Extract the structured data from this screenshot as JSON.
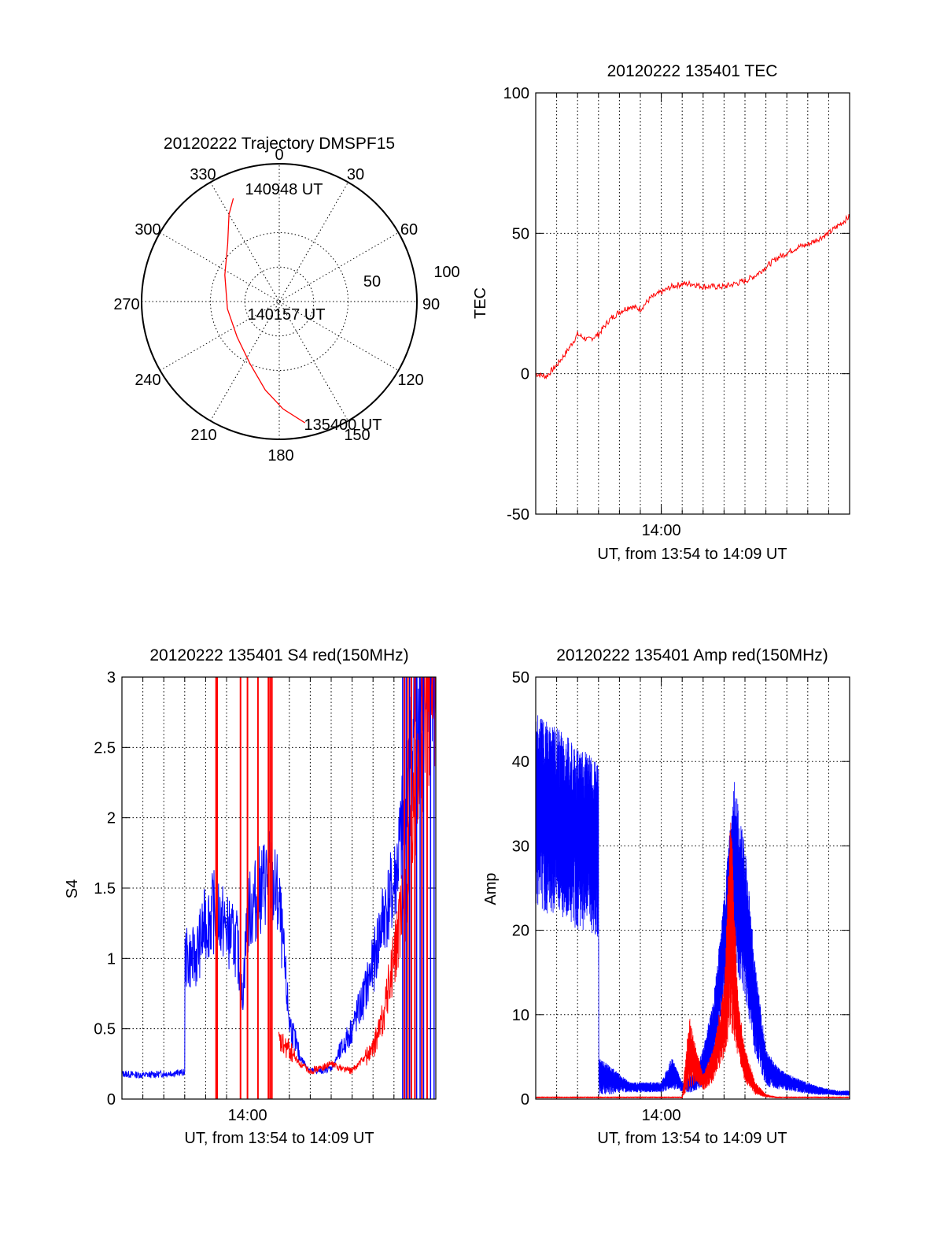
{
  "colors": {
    "red": "#ff0000",
    "blue": "#0000ff",
    "axis": "#000000",
    "grid": "#000000"
  },
  "chart_data": [
    {
      "id": "polar",
      "type": "scatter",
      "subtype": "polar-trajectory",
      "title": "20120222 Trajectory DMSPF15",
      "azimuth_labels": [
        "0",
        "30",
        "60",
        "90",
        "120",
        "150",
        "180",
        "210",
        "240",
        "270",
        "300",
        "330"
      ],
      "radial_labels": [
        "50",
        "100"
      ],
      "radial_range": [
        0,
        100
      ],
      "grid": true,
      "annotations": [
        {
          "text": "140948 UT",
          "az": 336,
          "r": 82
        },
        {
          "text": "140157 UT",
          "az": 0,
          "r": 0
        },
        {
          "text": "135400 UT",
          "az": 168,
          "r": 90
        }
      ],
      "series": [
        {
          "color": "red",
          "points": [
            [
              336,
              82
            ],
            [
              330,
              73
            ],
            [
              318,
              56
            ],
            [
              296,
              44
            ],
            [
              262,
              38
            ],
            [
              230,
              40
            ],
            [
              205,
              50
            ],
            [
              189,
              65
            ],
            [
              178,
              78
            ],
            [
              168,
              90
            ]
          ]
        }
      ]
    },
    {
      "id": "tec",
      "type": "line",
      "title": "20120222 135401 TEC",
      "xlabel": "UT, from 13:54 to 14:09 UT",
      "ylabel": "TEC",
      "xlim": [
        "13:54",
        "14:09"
      ],
      "ylim": [
        -50,
        100
      ],
      "yticks": [
        "100",
        "50",
        "0",
        "-50"
      ],
      "xticks": [
        "14:00"
      ],
      "grid": true,
      "series": [
        {
          "color": "red",
          "x": [
            "13:54:00",
            "13:54:30",
            "13:55:00",
            "13:55:30",
            "13:56:00",
            "13:56:30",
            "13:57:00",
            "13:57:30",
            "13:58:00",
            "13:58:30",
            "13:59:00",
            "13:59:30",
            "14:00:00",
            "14:00:30",
            "14:01:00",
            "14:01:30",
            "14:02:00",
            "14:02:30",
            "14:03:00",
            "14:03:30",
            "14:04:00",
            "14:04:30",
            "14:05:00",
            "14:05:30",
            "14:06:00",
            "14:06:30",
            "14:07:00",
            "14:07:30",
            "14:08:00",
            "14:08:30",
            "14:09:00"
          ],
          "y": [
            0,
            -1,
            3,
            8,
            14,
            12,
            14,
            19,
            22,
            24,
            23,
            27,
            29,
            31,
            32,
            32,
            31,
            31,
            31,
            32,
            33,
            35,
            38,
            41,
            43,
            45,
            46,
            48,
            50,
            53,
            56
          ]
        }
      ]
    },
    {
      "id": "s4",
      "type": "line",
      "title": "20120222 135401 S4 red(150MHz)",
      "xlabel": "UT, from 13:54 to 14:09 UT",
      "ylabel": "S4",
      "xlim": [
        "13:54",
        "14:09"
      ],
      "ylim": [
        0,
        3
      ],
      "yticks": [
        "3",
        "2.5",
        "2",
        "1.5",
        "1",
        "0.5",
        "0"
      ],
      "xticks": [
        "14:00"
      ],
      "grid": true,
      "series": [
        {
          "color": "blue",
          "x": [
            "13:54:00",
            "13:55:00",
            "13:56:00",
            "13:57:00",
            "13:57:01",
            "13:57:30",
            "13:58:00",
            "13:58:30",
            "13:59:00",
            "13:59:30",
            "13:59:45",
            "14:00:00",
            "14:00:30",
            "14:01:00",
            "14:01:30",
            "14:02:00",
            "14:02:30",
            "14:03:00",
            "14:03:30",
            "14:04:00",
            "14:04:30",
            "14:05:00",
            "14:05:30",
            "14:06:00",
            "14:06:30",
            "14:07:00",
            "14:07:30",
            "14:08:00",
            "14:08:30",
            "14:09:00"
          ],
          "y": [
            0.18,
            0.17,
            0.18,
            0.19,
            1.0,
            1.0,
            1.25,
            1.35,
            1.2,
            1.1,
            0.7,
            1.3,
            1.45,
            1.6,
            1.4,
            0.55,
            0.3,
            0.2,
            0.2,
            0.22,
            0.35,
            0.5,
            0.7,
            0.95,
            1.3,
            1.5,
            2.0,
            2.8,
            3.0,
            3.0
          ]
        },
        {
          "color": "red",
          "x": [
            "14:01:30",
            "14:02:00",
            "14:02:30",
            "14:03:00",
            "14:03:30",
            "14:04:00",
            "14:04:30",
            "14:05:00",
            "14:05:30",
            "14:06:00",
            "14:06:30",
            "14:07:00",
            "14:07:30",
            "14:08:00",
            "14:08:30",
            "14:09:00"
          ],
          "y": [
            0.4,
            0.35,
            0.25,
            0.2,
            0.22,
            0.25,
            0.22,
            0.2,
            0.28,
            0.35,
            0.6,
            1.0,
            1.4,
            2.0,
            2.8,
            3.0
          ]
        }
      ],
      "spikes": [
        {
          "color": "red",
          "x": [
            "13:58:30",
            "13:58:33",
            "13:59:40",
            "14:00:00",
            "14:00:30",
            "14:01:00",
            "14:01:05",
            "14:01:10",
            "14:07:30",
            "14:07:40",
            "14:07:50",
            "14:08:00",
            "14:08:20",
            "14:08:35"
          ]
        },
        {
          "color": "blue",
          "x": [
            "14:07:25",
            "14:07:35",
            "14:07:45",
            "14:08:05",
            "14:08:15",
            "14:08:25",
            "14:08:45",
            "14:08:55"
          ]
        }
      ]
    },
    {
      "id": "amp",
      "type": "line",
      "title": "20120222 135401 Amp red(150MHz)",
      "xlabel": "UT, from 13:54 to 14:09 UT",
      "ylabel": "Amp",
      "xlim": [
        "13:54",
        "14:09"
      ],
      "ylim": [
        0,
        50
      ],
      "yticks": [
        "50",
        "40",
        "30",
        "20",
        "10",
        "0"
      ],
      "xticks": [
        "14:00"
      ],
      "grid": true,
      "series": [
        {
          "color": "blue",
          "x": [
            "13:54:00",
            "13:54:30",
            "13:55:00",
            "13:55:30",
            "13:56:00",
            "13:56:30",
            "13:57:00",
            "13:57:01",
            "13:57:30",
            "13:58:00",
            "13:58:30",
            "13:59:00",
            "13:59:30",
            "14:00:00",
            "14:00:30",
            "14:01:00",
            "14:01:30",
            "14:02:00",
            "14:02:30",
            "14:03:00",
            "14:03:30",
            "14:04:00",
            "14:04:30",
            "14:05:00",
            "14:05:30",
            "14:06:00",
            "14:06:30",
            "14:07:00",
            "14:07:30",
            "14:08:00",
            "14:08:30",
            "14:09:00"
          ],
          "y_low": [
            23,
            22,
            22,
            21,
            20,
            20,
            19,
            0.5,
            0.5,
            0.8,
            0.8,
            0.8,
            0.8,
            0.8,
            1.2,
            0.8,
            0.8,
            1.5,
            4,
            12,
            16,
            12,
            5,
            1.5,
            1.2,
            1.0,
            0.8,
            0.6,
            0.5,
            0.5,
            0.4,
            0.4
          ],
          "y_high": [
            46,
            45,
            44,
            43,
            42,
            41,
            40,
            5,
            4,
            3,
            2,
            2,
            2,
            2,
            5,
            2,
            3,
            6,
            12,
            24,
            38,
            30,
            16,
            6,
            4,
            3,
            2.5,
            2,
            1.5,
            1.2,
            1.0,
            1.0
          ]
        },
        {
          "color": "red",
          "x": [
            "13:54:00",
            "13:57:00",
            "13:57:30",
            "14:00:00",
            "14:01:00",
            "14:01:20",
            "14:01:40",
            "14:02:00",
            "14:02:30",
            "14:03:00",
            "14:03:20",
            "14:03:40",
            "14:04:00",
            "14:04:30",
            "14:05:00",
            "14:05:30",
            "14:06:00",
            "14:09:00"
          ],
          "y_low": [
            0.1,
            0.1,
            0.1,
            0.1,
            0.1,
            1,
            2,
            1,
            2,
            5,
            8,
            5,
            2,
            0.5,
            0.2,
            0.1,
            0.1,
            0.1
          ],
          "y_high": [
            0.3,
            0.3,
            0.3,
            0.3,
            0.3,
            10,
            6,
            3,
            6,
            14,
            35,
            12,
            6,
            2,
            0.6,
            0.3,
            0.3,
            0.3
          ]
        }
      ]
    }
  ]
}
